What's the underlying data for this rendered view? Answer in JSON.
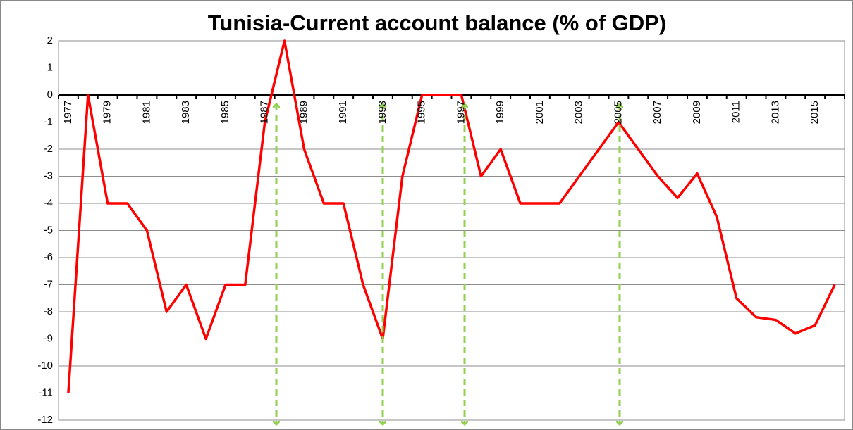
{
  "chart_data": {
    "type": "line",
    "title": "Tunisia-Current account balance (% of GDP)",
    "categories": [
      "1977",
      null,
      "1979",
      null,
      "1981",
      null,
      "1983",
      null,
      "1985",
      null,
      "1987",
      null,
      "1989",
      null,
      "1991",
      null,
      "1993",
      null,
      "1995",
      null,
      "1997",
      null,
      "1999",
      null,
      "2001",
      null,
      "2003",
      null,
      "2005",
      null,
      "2007",
      null,
      "2009",
      null,
      "2011",
      null,
      "2013",
      null,
      "2015",
      null
    ],
    "values": [
      -11,
      0,
      -4,
      -4,
      -5,
      -8,
      -7,
      -9,
      -7,
      -7,
      -1,
      2,
      -2,
      -4,
      -4,
      -7,
      -9,
      -3,
      0,
      0,
      0,
      -3,
      -2,
      -4,
      -4,
      -4,
      -3,
      -2,
      -1,
      -2,
      -3,
      -3.8,
      -2.9,
      -4.5,
      -7.5,
      -8.2,
      -8.3,
      -8.8,
      -8.5,
      -7
    ],
    "color": "#ff0000",
    "ylim": [
      -12,
      2
    ],
    "yticks": [
      2,
      1,
      0,
      -1,
      -2,
      -3,
      -4,
      -5,
      -6,
      -7,
      -8,
      -9,
      -10,
      -11,
      -12
    ],
    "grid": true
  }
}
